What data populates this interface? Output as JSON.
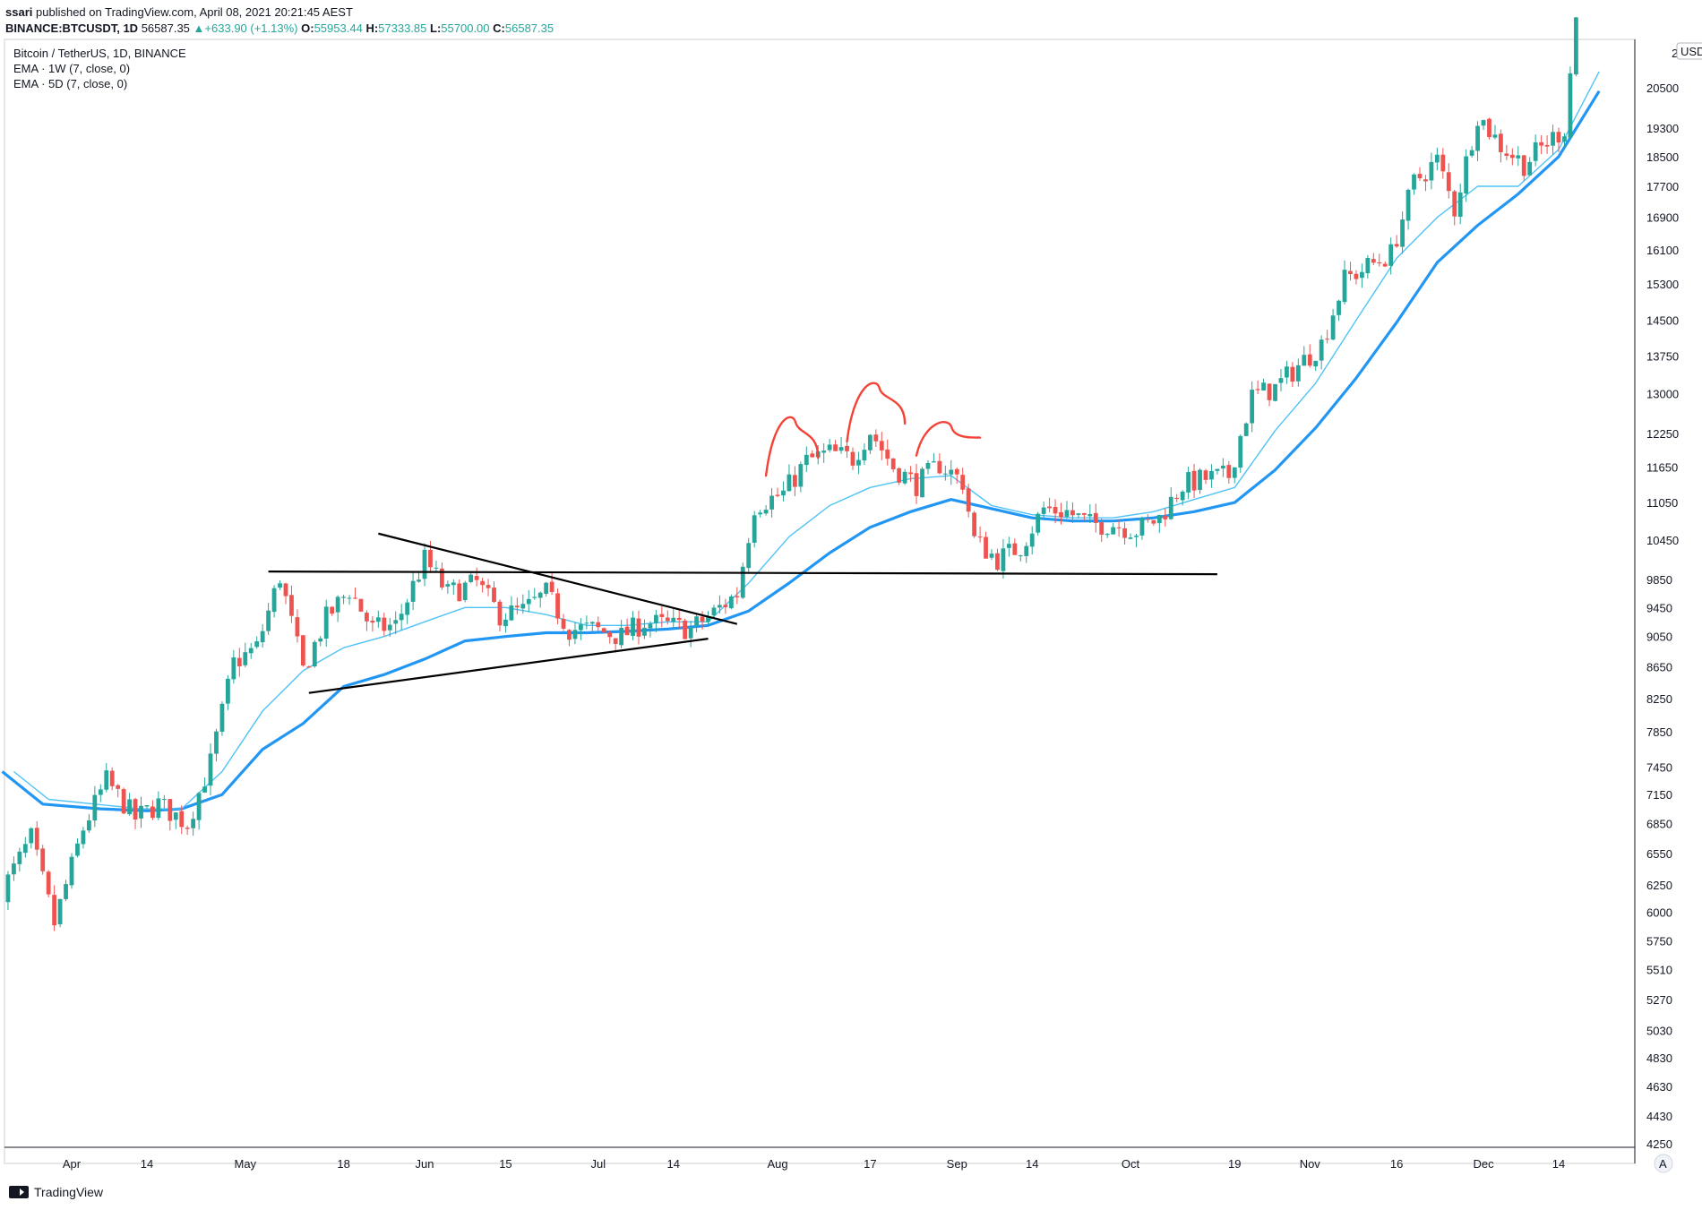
{
  "header": {
    "author": "ssari",
    "published": "published on TradingView.com, April 08, 2021 20:21:45 AEST",
    "symbol": "BINANCE:BTCUSDT, 1D",
    "last_price": "56587.35",
    "change": "+633.90 (+1.13%)",
    "o_label": "O:",
    "o_value": "55953.44",
    "h_label": "H:",
    "h_value": "57333.85",
    "l_label": "L:",
    "l_value": "55700.00",
    "c_label": "C:",
    "c_value": "56587.35"
  },
  "legend": {
    "title": "Bitcoin / TetherUS, 1D, BINANCE",
    "ema1": "EMA · 1W (7, close, 0)",
    "ema2": "EMA · 5D (7, close, 0)"
  },
  "currency_badge": "USDT",
  "auto_button": "A",
  "footer": {
    "brand": "TradingView"
  },
  "colors": {
    "up": "#26a69a",
    "down": "#ef5350",
    "ema_weekly": "#2196f3",
    "ema_daily": "#4fc3f7",
    "trendline": "#000000",
    "annotation": "#f44336"
  },
  "chart_data": {
    "type": "candlestick",
    "scale": "log",
    "y_ticks": [
      4250,
      4430,
      4630,
      4830,
      5030,
      5270,
      5510,
      5750,
      6000,
      6250,
      6550,
      6850,
      7150,
      7450,
      7850,
      8250,
      8650,
      9050,
      9450,
      9850,
      10450,
      11050,
      11650,
      12250,
      13000,
      13750,
      14500,
      15300,
      16100,
      16900,
      17700,
      18500,
      19300,
      20500
    ],
    "top_tick_partial": "2",
    "x_ticks": [
      {
        "label": "Apr",
        "date": "2020-04-01"
      },
      {
        "label": "14",
        "date": "2020-04-14"
      },
      {
        "label": "May",
        "date": "2020-05-01"
      },
      {
        "label": "18",
        "date": "2020-05-18"
      },
      {
        "label": "Jun",
        "date": "2020-06-01"
      },
      {
        "label": "15",
        "date": "2020-06-15"
      },
      {
        "label": "Jul",
        "date": "2020-07-01"
      },
      {
        "label": "14",
        "date": "2020-07-14"
      },
      {
        "label": "Aug",
        "date": "2020-08-01"
      },
      {
        "label": "17",
        "date": "2020-08-17"
      },
      {
        "label": "Sep",
        "date": "2020-09-01"
      },
      {
        "label": "14",
        "date": "2020-09-14"
      },
      {
        "label": "Oct",
        "date": "2020-10-01"
      },
      {
        "label": "19",
        "date": "2020-10-19"
      },
      {
        "label": "Nov",
        "date": "2020-11-01"
      },
      {
        "label": "16",
        "date": "2020-11-16"
      },
      {
        "label": "Dec",
        "date": "2020-12-01"
      },
      {
        "label": "14",
        "date": "2020-12-14"
      }
    ],
    "closes": [
      {
        "date": "2020-03-20",
        "close": 6200
      },
      {
        "date": "2020-03-25",
        "close": 6700
      },
      {
        "date": "2020-03-29",
        "close": 5900
      },
      {
        "date": "2020-04-03",
        "close": 6800
      },
      {
        "date": "2020-04-07",
        "close": 7300
      },
      {
        "date": "2020-04-12",
        "close": 6900
      },
      {
        "date": "2020-04-16",
        "close": 7050
      },
      {
        "date": "2020-04-21",
        "close": 6850
      },
      {
        "date": "2020-04-25",
        "close": 7500
      },
      {
        "date": "2020-04-29",
        "close": 8700
      },
      {
        "date": "2020-05-03",
        "close": 8900
      },
      {
        "date": "2020-05-07",
        "close": 9900
      },
      {
        "date": "2020-05-11",
        "close": 8600
      },
      {
        "date": "2020-05-15",
        "close": 9300
      },
      {
        "date": "2020-05-19",
        "close": 9700
      },
      {
        "date": "2020-05-23",
        "close": 9150
      },
      {
        "date": "2020-05-27",
        "close": 9200
      },
      {
        "date": "2020-06-01",
        "close": 10150
      },
      {
        "date": "2020-06-05",
        "close": 9650
      },
      {
        "date": "2020-06-10",
        "close": 9800
      },
      {
        "date": "2020-06-14",
        "close": 9350
      },
      {
        "date": "2020-06-18",
        "close": 9400
      },
      {
        "date": "2020-06-22",
        "close": 9650
      },
      {
        "date": "2020-06-26",
        "close": 9150
      },
      {
        "date": "2020-06-30",
        "close": 9150
      },
      {
        "date": "2020-07-05",
        "close": 9050
      },
      {
        "date": "2020-07-09",
        "close": 9250
      },
      {
        "date": "2020-07-13",
        "close": 9200
      },
      {
        "date": "2020-07-17",
        "close": 9150
      },
      {
        "date": "2020-07-21",
        "close": 9380
      },
      {
        "date": "2020-07-25",
        "close": 9650
      },
      {
        "date": "2020-07-28",
        "close": 11000
      },
      {
        "date": "2020-08-02",
        "close": 11200
      },
      {
        "date": "2020-08-06",
        "close": 11750
      },
      {
        "date": "2020-08-10",
        "close": 11900
      },
      {
        "date": "2020-08-14",
        "close": 11800
      },
      {
        "date": "2020-08-17",
        "close": 12300
      },
      {
        "date": "2020-08-21",
        "close": 11650
      },
      {
        "date": "2020-08-25",
        "close": 11350
      },
      {
        "date": "2020-08-29",
        "close": 11700
      },
      {
        "date": "2020-09-02",
        "close": 11400
      },
      {
        "date": "2020-09-04",
        "close": 10450
      },
      {
        "date": "2020-09-08",
        "close": 10150
      },
      {
        "date": "2020-09-12",
        "close": 10350
      },
      {
        "date": "2020-09-16",
        "close": 10950
      },
      {
        "date": "2020-09-20",
        "close": 10900
      },
      {
        "date": "2020-09-24",
        "close": 10700
      },
      {
        "date": "2020-09-28",
        "close": 10700
      },
      {
        "date": "2020-10-02",
        "close": 10600
      },
      {
        "date": "2020-10-06",
        "close": 10800
      },
      {
        "date": "2020-10-10",
        "close": 11350
      },
      {
        "date": "2020-10-14",
        "close": 11450
      },
      {
        "date": "2020-10-18",
        "close": 11500
      },
      {
        "date": "2020-10-22",
        "close": 12950
      },
      {
        "date": "2020-10-26",
        "close": 13100
      },
      {
        "date": "2020-10-30",
        "close": 13550
      },
      {
        "date": "2020-11-03",
        "close": 14000
      },
      {
        "date": "2020-11-07",
        "close": 15400
      },
      {
        "date": "2020-11-11",
        "close": 15700
      },
      {
        "date": "2020-11-15",
        "close": 16000
      },
      {
        "date": "2020-11-19",
        "close": 17800
      },
      {
        "date": "2020-11-23",
        "close": 18400
      },
      {
        "date": "2020-11-26",
        "close": 17100
      },
      {
        "date": "2020-11-30",
        "close": 19700
      },
      {
        "date": "2020-12-04",
        "close": 18800
      },
      {
        "date": "2020-12-08",
        "close": 18300
      },
      {
        "date": "2020-12-12",
        "close": 18900
      },
      {
        "date": "2020-12-15",
        "close": 19300
      },
      {
        "date": "2020-12-17",
        "close": 22800
      }
    ],
    "ema_weekly": [
      {
        "date": "2020-03-20",
        "value": 7400
      },
      {
        "date": "2020-03-27",
        "value": 7050
      },
      {
        "date": "2020-04-06",
        "value": 7000
      },
      {
        "date": "2020-04-14",
        "value": 6980
      },
      {
        "date": "2020-04-20",
        "value": 7000
      },
      {
        "date": "2020-04-27",
        "value": 7150
      },
      {
        "date": "2020-05-04",
        "value": 7650
      },
      {
        "date": "2020-05-11",
        "value": 7950
      },
      {
        "date": "2020-05-18",
        "value": 8400
      },
      {
        "date": "2020-05-25",
        "value": 8550
      },
      {
        "date": "2020-06-01",
        "value": 8750
      },
      {
        "date": "2020-06-08",
        "value": 8990
      },
      {
        "date": "2020-06-15",
        "value": 9050
      },
      {
        "date": "2020-06-22",
        "value": 9100
      },
      {
        "date": "2020-06-29",
        "value": 9100
      },
      {
        "date": "2020-07-06",
        "value": 9120
      },
      {
        "date": "2020-07-13",
        "value": 9150
      },
      {
        "date": "2020-07-20",
        "value": 9200
      },
      {
        "date": "2020-07-27",
        "value": 9400
      },
      {
        "date": "2020-08-03",
        "value": 9800
      },
      {
        "date": "2020-08-10",
        "value": 10250
      },
      {
        "date": "2020-08-17",
        "value": 10650
      },
      {
        "date": "2020-08-24",
        "value": 10900
      },
      {
        "date": "2020-08-31",
        "value": 11100
      },
      {
        "date": "2020-09-07",
        "value": 10950
      },
      {
        "date": "2020-09-14",
        "value": 10800
      },
      {
        "date": "2020-09-21",
        "value": 10750
      },
      {
        "date": "2020-09-28",
        "value": 10750
      },
      {
        "date": "2020-10-05",
        "value": 10800
      },
      {
        "date": "2020-10-12",
        "value": 10900
      },
      {
        "date": "2020-10-19",
        "value": 11050
      },
      {
        "date": "2020-10-26",
        "value": 11600
      },
      {
        "date": "2020-11-02",
        "value": 12350
      },
      {
        "date": "2020-11-09",
        "value": 13300
      },
      {
        "date": "2020-11-16",
        "value": 14450
      },
      {
        "date": "2020-11-23",
        "value": 15800
      },
      {
        "date": "2020-11-30",
        "value": 16700
      },
      {
        "date": "2020-12-07",
        "value": 17500
      },
      {
        "date": "2020-12-14",
        "value": 18500
      },
      {
        "date": "2020-12-21",
        "value": 20400
      }
    ],
    "ema_daily": [
      {
        "date": "2020-03-22",
        "value": 7400
      },
      {
        "date": "2020-03-28",
        "value": 7100
      },
      {
        "date": "2020-04-05",
        "value": 7050
      },
      {
        "date": "2020-04-13",
        "value": 7000
      },
      {
        "date": "2020-04-20",
        "value": 7000
      },
      {
        "date": "2020-04-27",
        "value": 7400
      },
      {
        "date": "2020-05-04",
        "value": 8100
      },
      {
        "date": "2020-05-11",
        "value": 8600
      },
      {
        "date": "2020-05-18",
        "value": 8900
      },
      {
        "date": "2020-05-25",
        "value": 9050
      },
      {
        "date": "2020-06-01",
        "value": 9250
      },
      {
        "date": "2020-06-08",
        "value": 9450
      },
      {
        "date": "2020-06-15",
        "value": 9450
      },
      {
        "date": "2020-06-22",
        "value": 9350
      },
      {
        "date": "2020-06-29",
        "value": 9200
      },
      {
        "date": "2020-07-06",
        "value": 9200
      },
      {
        "date": "2020-07-13",
        "value": 9250
      },
      {
        "date": "2020-07-20",
        "value": 9250
      },
      {
        "date": "2020-07-27",
        "value": 9800
      },
      {
        "date": "2020-08-03",
        "value": 10500
      },
      {
        "date": "2020-08-10",
        "value": 11000
      },
      {
        "date": "2020-08-17",
        "value": 11300
      },
      {
        "date": "2020-08-24",
        "value": 11450
      },
      {
        "date": "2020-08-31",
        "value": 11500
      },
      {
        "date": "2020-09-07",
        "value": 11000
      },
      {
        "date": "2020-09-14",
        "value": 10850
      },
      {
        "date": "2020-09-21",
        "value": 10800
      },
      {
        "date": "2020-09-28",
        "value": 10800
      },
      {
        "date": "2020-10-05",
        "value": 10900
      },
      {
        "date": "2020-10-12",
        "value": 11100
      },
      {
        "date": "2020-10-19",
        "value": 11300
      },
      {
        "date": "2020-10-26",
        "value": 12300
      },
      {
        "date": "2020-11-02",
        "value": 13200
      },
      {
        "date": "2020-11-09",
        "value": 14500
      },
      {
        "date": "2020-11-16",
        "value": 15900
      },
      {
        "date": "2020-11-23",
        "value": 16900
      },
      {
        "date": "2020-11-30",
        "value": 17700
      },
      {
        "date": "2020-12-07",
        "value": 17700
      },
      {
        "date": "2020-12-14",
        "value": 18700
      },
      {
        "date": "2020-12-21",
        "value": 21000
      }
    ],
    "drawings": {
      "resistance_line": {
        "from": {
          "date": "2020-05-05",
          "price": 9970
        },
        "to": {
          "date": "2020-10-16",
          "price": 9930
        }
      },
      "support_line": {
        "from": {
          "date": "2020-09-05",
          "price": 9950
        }
      },
      "triangle_upper": {
        "from": {
          "date": "2020-05-24",
          "price": 10550
        },
        "to": {
          "date": "2020-07-25",
          "price": 9220
        }
      },
      "triangle_lower": {
        "from": {
          "date": "2020-05-12",
          "price": 8320
        },
        "to": {
          "date": "2020-07-20",
          "price": 9020
        }
      },
      "head_and_shoulders_arcs": 3
    }
  }
}
